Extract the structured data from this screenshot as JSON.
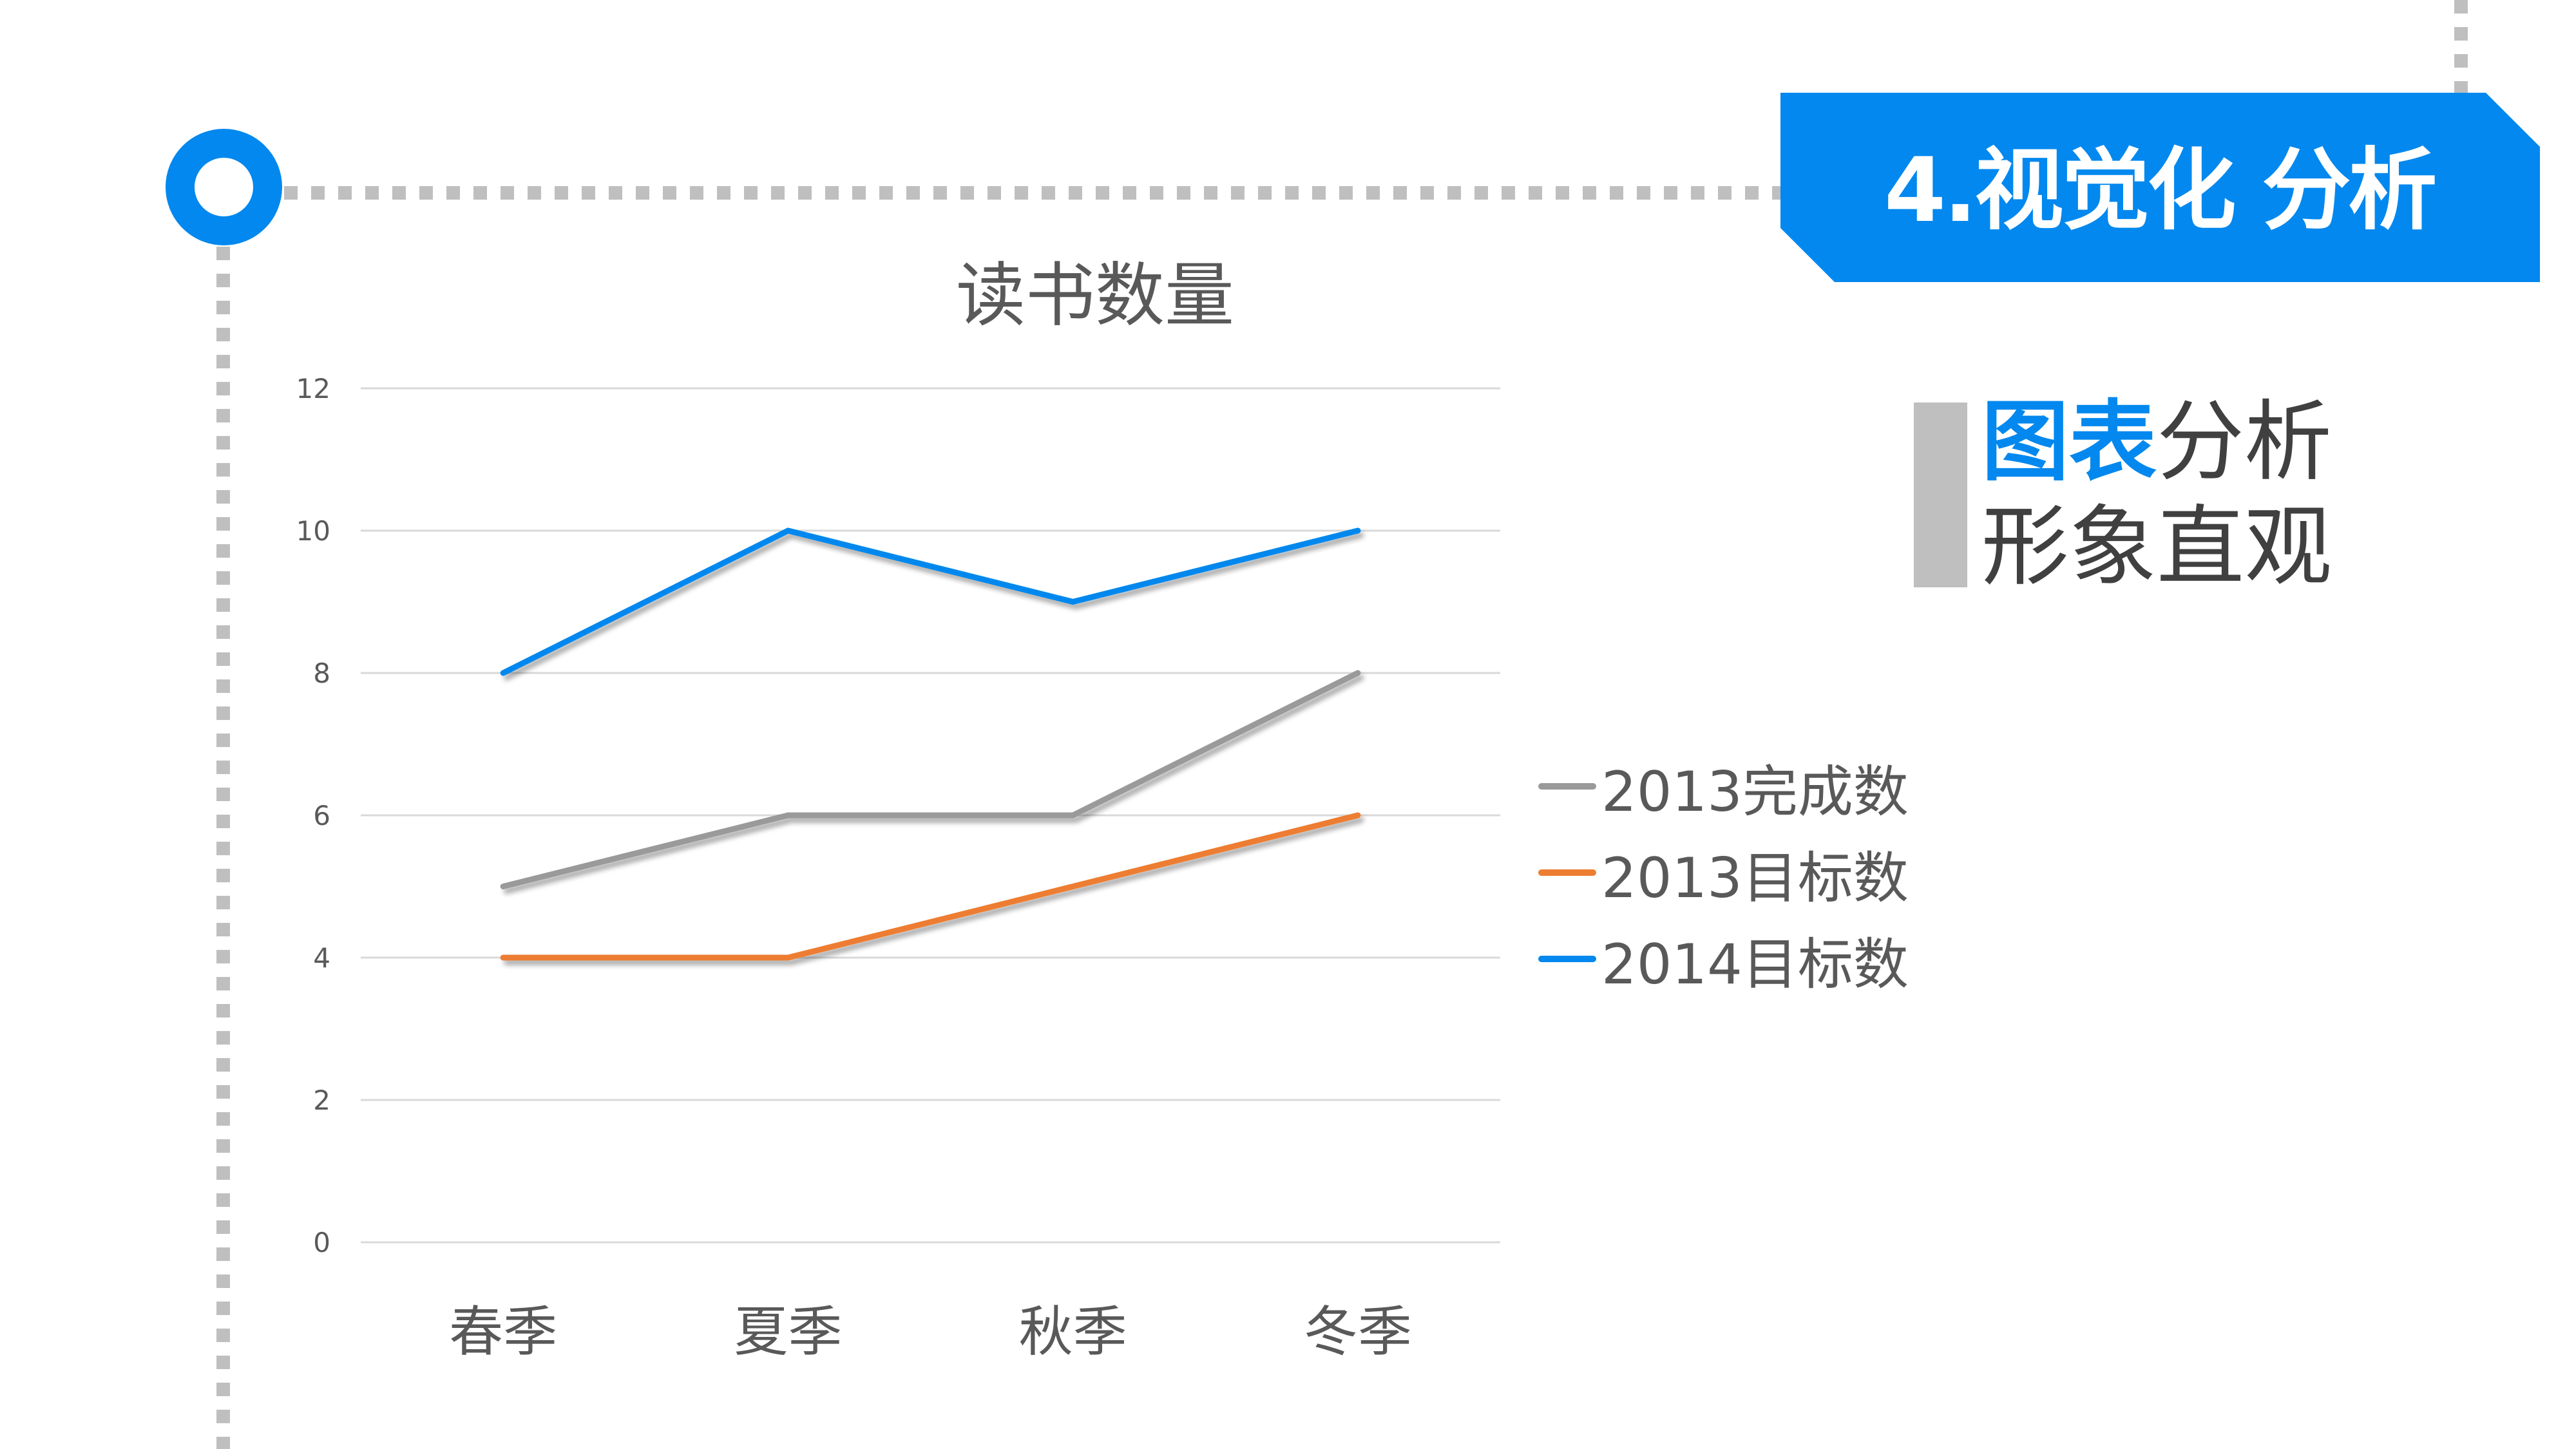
{
  "slide": {
    "section_title": "4.视觉化 分析",
    "side_caption": {
      "line1_highlight": "图表",
      "line1_rest": "分析",
      "line2": "形象直观"
    },
    "colors": {
      "accent_blue": "#0288EE",
      "dots_gray": "#BFBFBF",
      "caption_bar_gray": "#BFBFBF",
      "text_dark": "#404040"
    }
  },
  "chart_data": {
    "type": "line",
    "title": "读书数量",
    "xlabel": "",
    "ylabel": "",
    "categories": [
      "春季",
      "夏季",
      "秋季",
      "冬季"
    ],
    "series": [
      {
        "name": "2013完成数",
        "color": "#9A9A9A",
        "values": [
          5,
          6,
          6,
          8
        ]
      },
      {
        "name": "2013目标数",
        "color": "#ED7D31",
        "values": [
          4,
          4,
          5,
          6
        ]
      },
      {
        "name": "2014目标数",
        "color": "#0288EE",
        "values": [
          8,
          10,
          9,
          10
        ]
      }
    ],
    "yticks": [
      0,
      2,
      4,
      6,
      8,
      10,
      12
    ],
    "ylim": [
      0,
      12
    ],
    "grid": true,
    "gridline_color": "#D9D9D9",
    "legend_position": "right"
  }
}
